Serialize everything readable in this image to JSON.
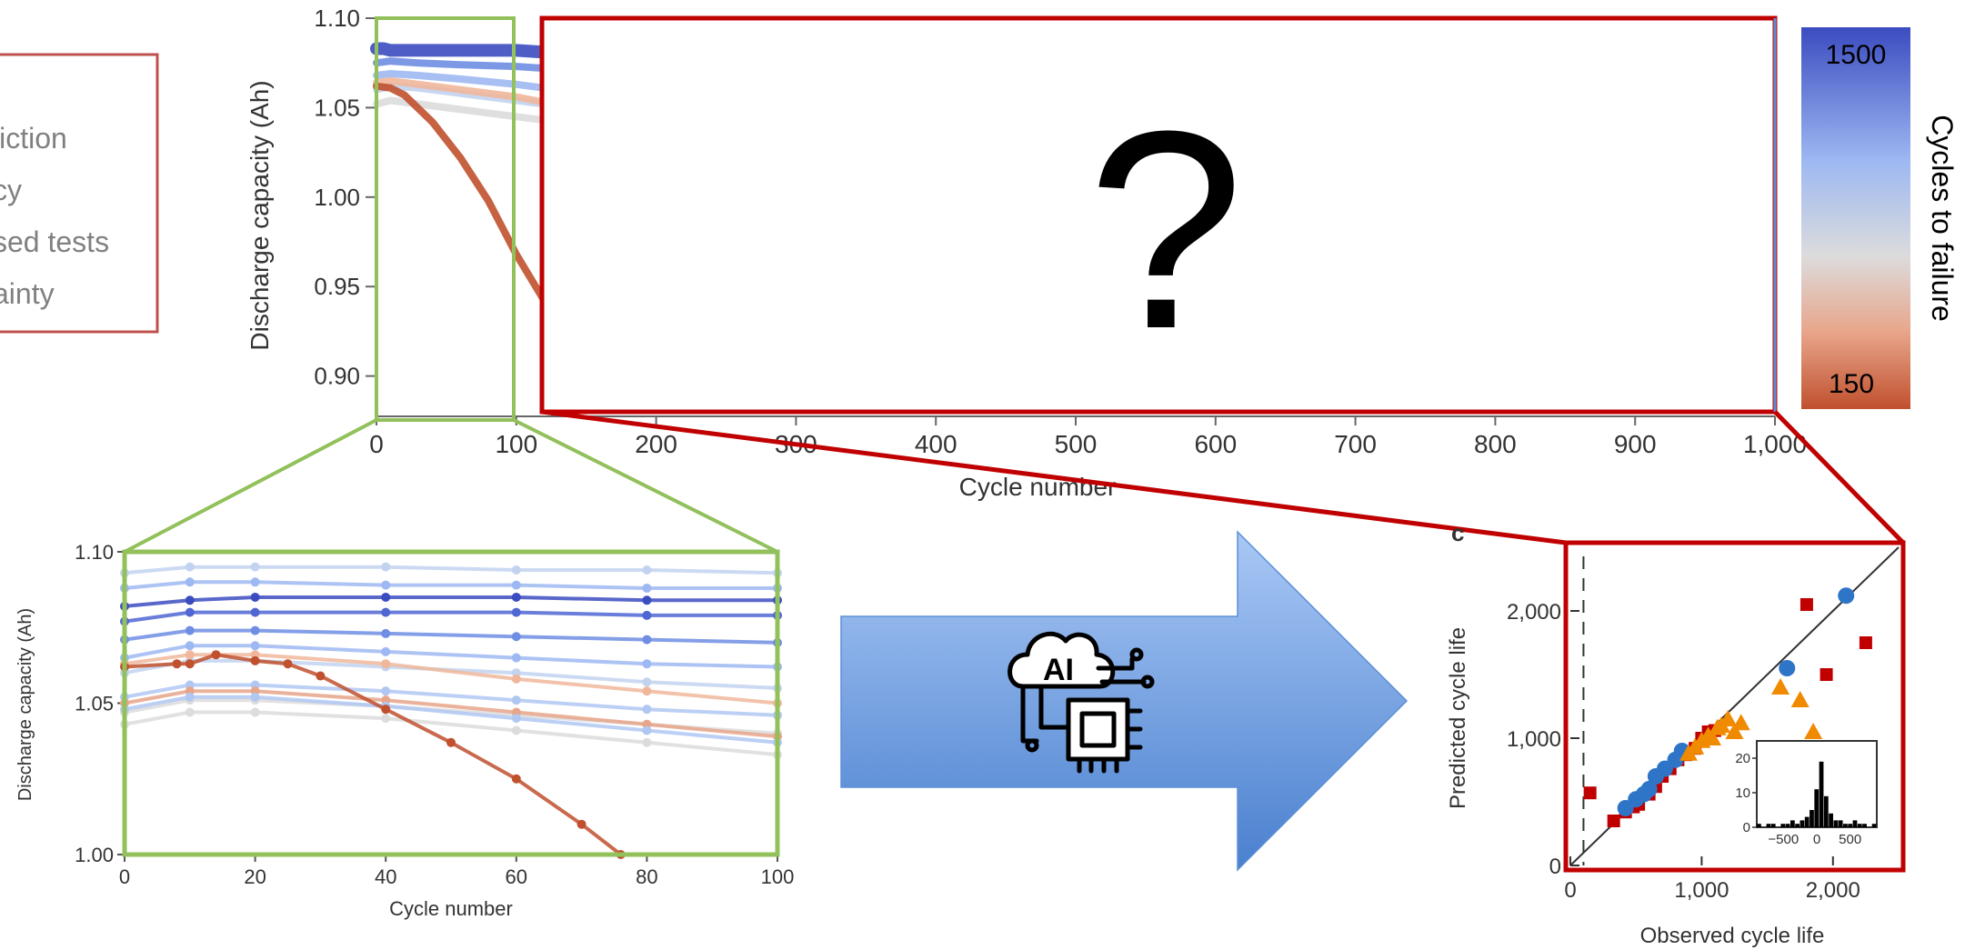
{
  "side_panel": {
    "lines": [
      "liction",
      "cy",
      "sed tests",
      "ainty"
    ],
    "border_color": "#c0504d"
  },
  "question_mark": "?",
  "colorbar": {
    "top_label": "1500",
    "bottom_label": "150",
    "title": "Cycles to failure",
    "color_high": "#3b4cc0",
    "color_mid": "#dcdcdc",
    "color_low": "#c0502e"
  },
  "arrow_icon": "ai-chip-icon",
  "ai_label": "AI",
  "colors": {
    "frame_red": "#c00000",
    "frame_green": "#92c05a",
    "arrow_blue": "#5b8fd8"
  },
  "chart_data": [
    {
      "id": "top",
      "type": "line",
      "title": "",
      "xlabel": "Cycle number",
      "ylabel": "Discharge capacity (Ah)",
      "xlim": [
        0,
        1000
      ],
      "ylim": [
        0.88,
        1.1
      ],
      "x_ticks": [
        "0",
        "100",
        "200",
        "300",
        "400",
        "500",
        "600",
        "700",
        "800",
        "900",
        "1,000"
      ],
      "y_ticks": [
        "0.90",
        "0.95",
        "1.00",
        "1.05",
        "1.10"
      ],
      "series": [
        {
          "x": [
            0,
            5,
            10,
            30,
            50,
            100,
            120
          ],
          "y": [
            1.083,
            1.083,
            1.082,
            1.082,
            1.082,
            1.082,
            1.081
          ],
          "color": "#3b4cc0"
        },
        {
          "x": [
            0,
            10,
            30,
            60,
            100,
            120
          ],
          "y": [
            1.075,
            1.076,
            1.075,
            1.074,
            1.073,
            1.072
          ],
          "color": "#6f8ee3"
        },
        {
          "x": [
            0,
            10,
            30,
            60,
            100,
            120
          ],
          "y": [
            1.068,
            1.069,
            1.068,
            1.066,
            1.063,
            1.061
          ],
          "color": "#9db8f2"
        },
        {
          "x": [
            0,
            10,
            30,
            60,
            100,
            120
          ],
          "y": [
            1.06,
            1.062,
            1.061,
            1.058,
            1.054,
            1.052
          ],
          "color": "#c2d3f0"
        },
        {
          "x": [
            0,
            10,
            30,
            60,
            100,
            120
          ],
          "y": [
            1.052,
            1.054,
            1.052,
            1.049,
            1.045,
            1.043
          ],
          "color": "#dcdcdc"
        },
        {
          "x": [
            0,
            10,
            30,
            60,
            100,
            120
          ],
          "y": [
            1.064,
            1.065,
            1.063,
            1.06,
            1.056,
            1.053
          ],
          "color": "#f0b79b"
        },
        {
          "x": [
            0,
            10,
            20,
            40,
            60,
            80,
            100,
            120
          ],
          "y": [
            1.062,
            1.061,
            1.057,
            1.042,
            1.022,
            0.998,
            0.968,
            0.942
          ],
          "color": "#c0502e"
        }
      ]
    },
    {
      "id": "zoom",
      "type": "scatter",
      "title": "",
      "xlabel": "Cycle number",
      "ylabel": "Discharge capacity (Ah)",
      "xlim": [
        0,
        100
      ],
      "ylim": [
        1.0,
        1.1
      ],
      "x_ticks": [
        "0",
        "20",
        "40",
        "60",
        "80",
        "100"
      ],
      "y_ticks": [
        "1.00",
        "1.05",
        "1.10"
      ],
      "series": [
        {
          "x": [
            0,
            10,
            20,
            40,
            60,
            80,
            100
          ],
          "y": [
            1.082,
            1.084,
            1.085,
            1.085,
            1.085,
            1.084,
            1.084
          ],
          "color": "#3b4cc0"
        },
        {
          "x": [
            0,
            10,
            20,
            40,
            60,
            80,
            100
          ],
          "y": [
            1.077,
            1.08,
            1.08,
            1.08,
            1.08,
            1.079,
            1.079
          ],
          "color": "#4f66d3"
        },
        {
          "x": [
            0,
            10,
            20,
            40,
            60,
            80,
            100
          ],
          "y": [
            1.093,
            1.095,
            1.095,
            1.095,
            1.094,
            1.094,
            1.093
          ],
          "color": "#c2d3f0"
        },
        {
          "x": [
            0,
            10,
            20,
            40,
            60,
            80,
            100
          ],
          "y": [
            1.088,
            1.09,
            1.09,
            1.089,
            1.089,
            1.088,
            1.088
          ],
          "color": "#9db8f2"
        },
        {
          "x": [
            0,
            10,
            20,
            40,
            60,
            80,
            100
          ],
          "y": [
            1.071,
            1.074,
            1.074,
            1.073,
            1.072,
            1.071,
            1.07
          ],
          "color": "#6f8ee3"
        },
        {
          "x": [
            0,
            10,
            20,
            40,
            60,
            80,
            100
          ],
          "y": [
            1.065,
            1.069,
            1.069,
            1.067,
            1.065,
            1.063,
            1.062
          ],
          "color": "#9db8f2"
        },
        {
          "x": [
            0,
            10,
            20,
            40,
            60,
            80,
            100
          ],
          "y": [
            1.06,
            1.064,
            1.064,
            1.062,
            1.06,
            1.057,
            1.055
          ],
          "color": "#c2d3f0"
        },
        {
          "x": [
            0,
            10,
            20,
            40,
            60,
            80,
            100
          ],
          "y": [
            1.063,
            1.066,
            1.066,
            1.063,
            1.058,
            1.054,
            1.05
          ],
          "color": "#f0b79b"
        },
        {
          "x": [
            0,
            10,
            20,
            40,
            60,
            80,
            100
          ],
          "y": [
            1.052,
            1.056,
            1.056,
            1.054,
            1.051,
            1.048,
            1.046
          ],
          "color": "#b0c7f2"
        },
        {
          "x": [
            0,
            10,
            20,
            40,
            60,
            80,
            100
          ],
          "y": [
            1.047,
            1.051,
            1.051,
            1.049,
            1.046,
            1.043,
            1.04
          ],
          "color": "#dcdcdc"
        },
        {
          "x": [
            0,
            10,
            20,
            40,
            60,
            80,
            100
          ],
          "y": [
            1.05,
            1.054,
            1.054,
            1.051,
            1.047,
            1.043,
            1.039
          ],
          "color": "#e8a58a"
        },
        {
          "x": [
            0,
            10,
            20,
            40,
            60,
            80,
            100
          ],
          "y": [
            1.043,
            1.047,
            1.047,
            1.045,
            1.041,
            1.037,
            1.033
          ],
          "color": "#dcdcdc"
        },
        {
          "x": [
            0,
            10,
            20,
            40,
            60,
            80,
            100
          ],
          "y": [
            1.048,
            1.052,
            1.052,
            1.049,
            1.045,
            1.041,
            1.037
          ],
          "color": "#b0c7f2"
        },
        {
          "x": [
            0,
            8,
            10,
            14,
            20,
            25,
            30,
            40,
            50,
            60,
            70,
            76
          ],
          "y": [
            1.062,
            1.063,
            1.063,
            1.066,
            1.064,
            1.063,
            1.059,
            1.048,
            1.037,
            1.025,
            1.01,
            1.0
          ],
          "color": "#c0502e"
        }
      ]
    },
    {
      "id": "parity",
      "type": "scatter",
      "title": "",
      "panel_letter": "c",
      "xlabel": "Observed cycle life",
      "ylabel": "Predicted cycle life",
      "xlim": [
        0,
        2500
      ],
      "ylim": [
        0,
        2500
      ],
      "x_ticks": [
        "0",
        "1,000",
        "2,000"
      ],
      "y_ticks": [
        "0",
        "1,000",
        "2,000"
      ],
      "dashed_x": 100,
      "series": [
        {
          "marker": "square",
          "color": "#c00000",
          "x": [
            150,
            330,
            420,
            480,
            520,
            600,
            650,
            700,
            760,
            820,
            880,
            950,
            1000,
            1050,
            1100,
            1800,
            2250,
            1950
          ],
          "y": [
            570,
            350,
            420,
            460,
            480,
            560,
            620,
            700,
            760,
            830,
            870,
            920,
            1000,
            1050,
            1060,
            2050,
            1750,
            1500
          ]
        },
        {
          "marker": "circle",
          "color": "#2e75c8",
          "x": [
            420,
            500,
            560,
            600,
            650,
            720,
            800,
            850,
            1650,
            2100
          ],
          "y": [
            450,
            520,
            560,
            600,
            700,
            760,
            830,
            900,
            1550,
            2120
          ]
        },
        {
          "marker": "triangle",
          "color": "#f08a00",
          "x": [
            900,
            950,
            1000,
            1050,
            1080,
            1120,
            1150,
            1200,
            1250,
            1300,
            1600,
            1750,
            1850
          ],
          "y": [
            880,
            930,
            980,
            1020,
            1000,
            1080,
            1100,
            1150,
            1050,
            1120,
            1400,
            1300,
            1050
          ]
        }
      ],
      "inset": {
        "x_ticks": [
          "−500",
          "0",
          "500"
        ],
        "y_ticks": [
          "0",
          "10",
          "20"
        ],
        "hist_counts": [
          1,
          0,
          1,
          1,
          0,
          1,
          1,
          2,
          1,
          2,
          3,
          5,
          11,
          19,
          9,
          4,
          2,
          2,
          1,
          1,
          2,
          1,
          1,
          0,
          1
        ],
        "xlim": [
          -900,
          900
        ],
        "ylim": [
          0,
          25
        ]
      }
    }
  ]
}
